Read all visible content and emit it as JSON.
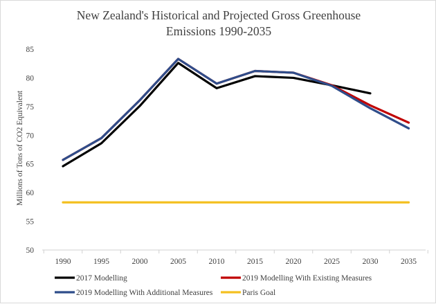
{
  "chart_data": {
    "type": "line",
    "title": "New Zealand's Historical and Projected Gross Greenhouse Emissions 1990-2035",
    "title_lines": [
      "New Zealand's Historical and Projected Gross Greenhouse",
      "Emissions 1990-2035"
    ],
    "xlabel": "",
    "ylabel": "Millions of Tons of CO2 Equivalent",
    "x": [
      1990,
      1995,
      2000,
      2005,
      2010,
      2015,
      2020,
      2025,
      2030,
      2035
    ],
    "ylim": [
      50,
      85
    ],
    "yticks": [
      50,
      55,
      60,
      65,
      70,
      75,
      80,
      85
    ],
    "grid": false,
    "legend_position": "bottom",
    "series": [
      {
        "name": "2017 Modelling",
        "color": "#000000",
        "values": [
          64.6,
          68.6,
          75.1,
          82.6,
          78.2,
          80.3,
          80.0,
          78.7,
          77.3,
          null
        ]
      },
      {
        "name": "2019 Modelling With Existing Measures",
        "color": "#c00000",
        "values": [
          65.7,
          69.5,
          76.1,
          83.3,
          79.0,
          81.2,
          80.9,
          78.7,
          75.2,
          72.2
        ]
      },
      {
        "name": "2019 Modelling With Additional Measures",
        "color": "#2f4d8a",
        "values": [
          65.7,
          69.5,
          76.1,
          83.3,
          79.0,
          81.2,
          80.9,
          78.6,
          74.7,
          71.2
        ]
      },
      {
        "name": "Paris Goal",
        "color": "#f4c020",
        "values": [
          58.3,
          58.3,
          58.3,
          58.3,
          58.3,
          58.3,
          58.3,
          58.3,
          58.3,
          58.3
        ]
      }
    ]
  }
}
